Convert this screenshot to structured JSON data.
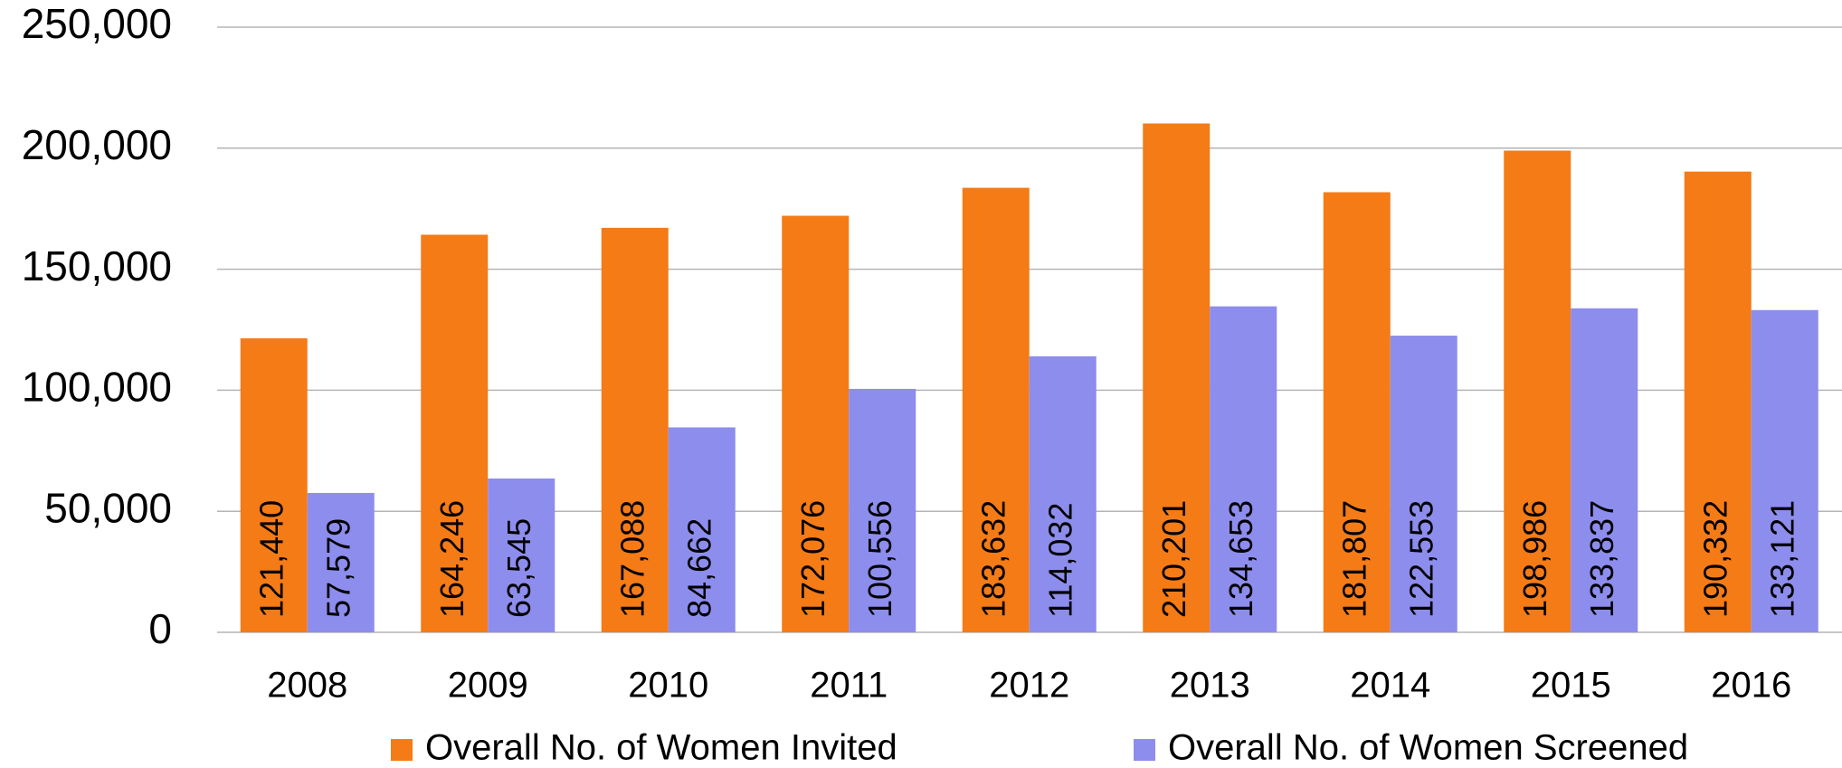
{
  "chart_data": {
    "type": "bar",
    "categories": [
      "2008",
      "2009",
      "2010",
      "2011",
      "2012",
      "2013",
      "2014",
      "2015",
      "2016"
    ],
    "series": [
      {
        "name": "Overall No. of Women Invited",
        "color": "#f47b16",
        "values": [
          121440,
          164246,
          167088,
          172076,
          183632,
          210201,
          181807,
          198986,
          190332
        ],
        "value_labels": [
          "121,440",
          "164,246",
          "167,088",
          "172,076",
          "183,632",
          "210,201",
          "181,807",
          "198,986",
          "190,332"
        ]
      },
      {
        "name": "Overall No. of Women Screened",
        "color": "#8d8ded",
        "values": [
          57579,
          63545,
          84662,
          100556,
          114032,
          134653,
          122553,
          133837,
          133121
        ],
        "value_labels": [
          "57,579",
          "63,545",
          "84,662",
          "100,556",
          "114,032",
          "134,653",
          "122,553",
          "133,837",
          "133,121"
        ]
      }
    ],
    "ylim": [
      0,
      250000
    ],
    "yticks": [
      0,
      {
        "value": 50000,
        "label": "50,000"
      },
      {
        "value": 100000,
        "label": "100,000"
      },
      {
        "value": 150000,
        "label": "150,000"
      },
      {
        "value": 200000,
        "label": "200,000"
      },
      {
        "value": 250000,
        "label": "250,000"
      }
    ],
    "grid": true,
    "legend": "bottom"
  }
}
